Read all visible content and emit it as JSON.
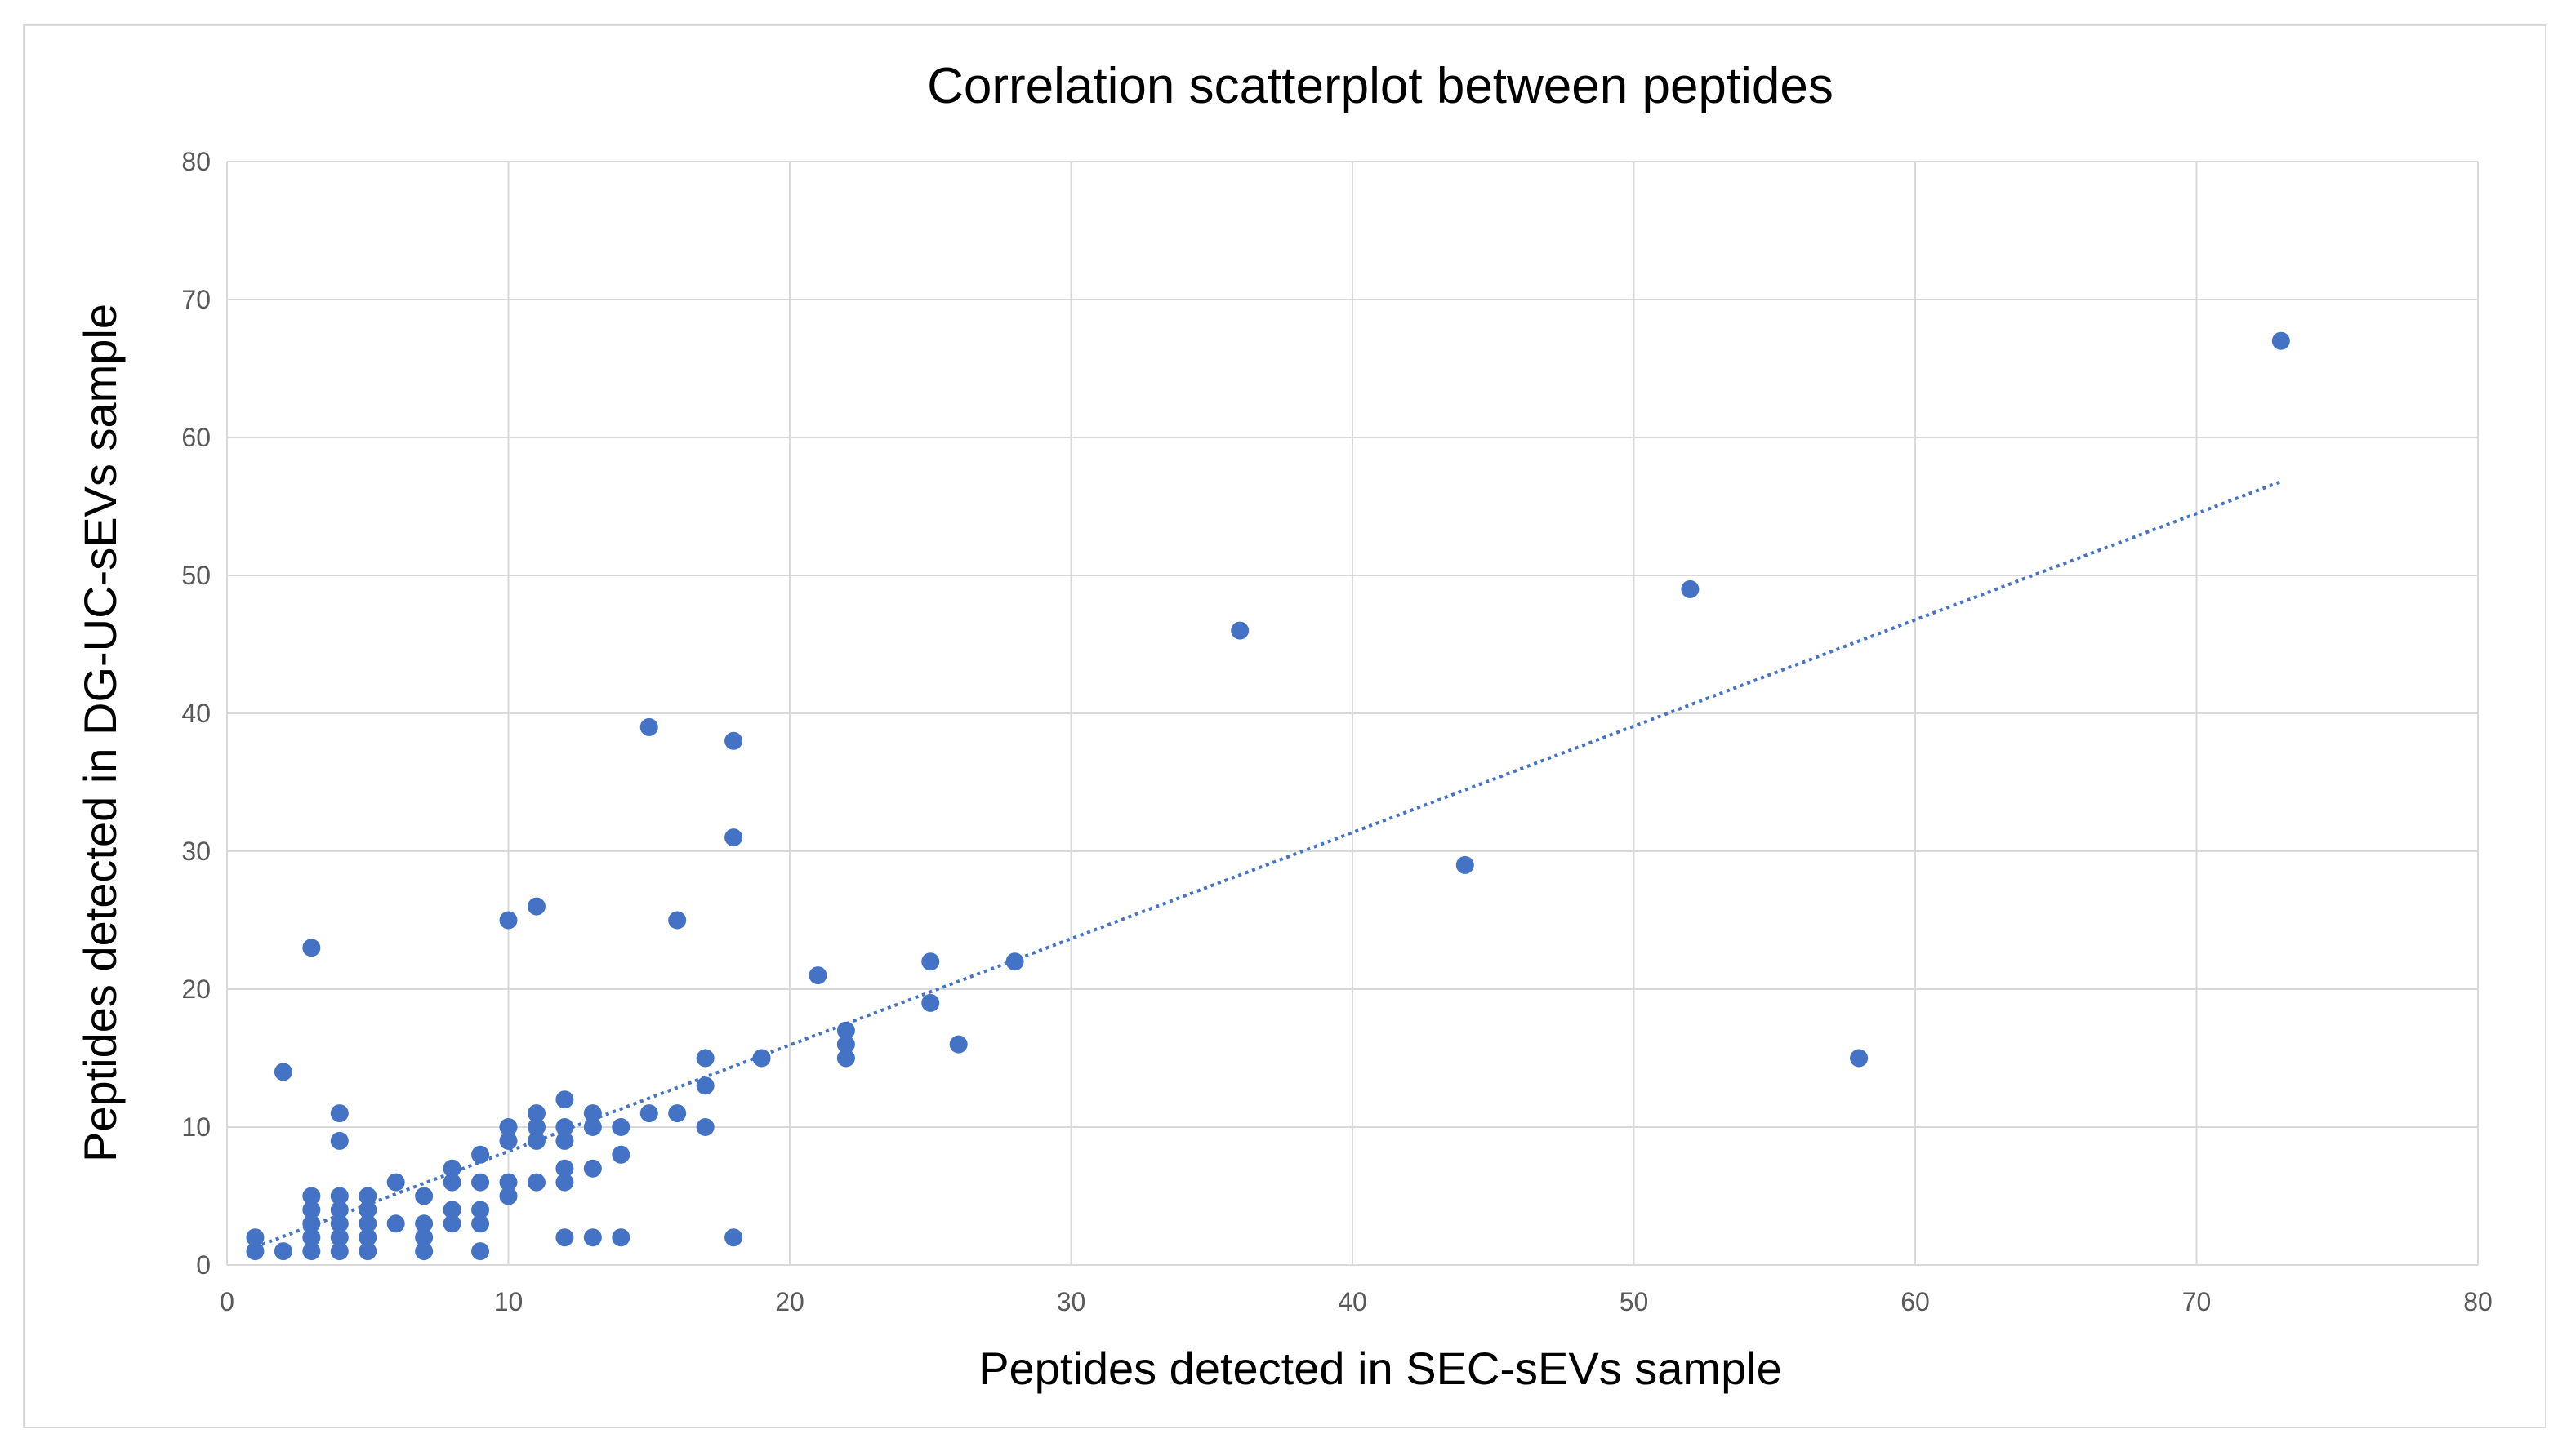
{
  "chart_data": {
    "type": "scatter",
    "title": "Correlation scatterplot between peptides",
    "xlabel": "Peptides  detected in SEC-sEVs sample",
    "ylabel": "Peptides  detected in DG-UC-sEVs sample",
    "xlim": [
      0,
      80
    ],
    "ylim": [
      0,
      80
    ],
    "xticks": [
      0,
      10,
      20,
      30,
      40,
      50,
      60,
      70,
      80
    ],
    "yticks": [
      0,
      10,
      20,
      30,
      40,
      50,
      60,
      70,
      80
    ],
    "grid": true,
    "legend": "none",
    "marker_color": "#4472C4",
    "trendline": {
      "type": "linear",
      "style": "dotted",
      "color": "#4472C4",
      "x": [
        1,
        73
      ],
      "y": [
        1.3,
        56.8
      ]
    },
    "series": [
      {
        "points": [
          [
            1,
            1
          ],
          [
            1,
            2
          ],
          [
            2,
            1
          ],
          [
            2,
            14
          ],
          [
            3,
            1
          ],
          [
            3,
            2
          ],
          [
            3,
            3
          ],
          [
            3,
            4
          ],
          [
            3,
            5
          ],
          [
            3,
            23
          ],
          [
            4,
            1
          ],
          [
            4,
            2
          ],
          [
            4,
            3
          ],
          [
            4,
            4
          ],
          [
            4,
            5
          ],
          [
            4,
            9
          ],
          [
            4,
            11
          ],
          [
            5,
            1
          ],
          [
            5,
            2
          ],
          [
            5,
            3
          ],
          [
            5,
            4
          ],
          [
            5,
            5
          ],
          [
            6,
            3
          ],
          [
            6,
            6
          ],
          [
            7,
            1
          ],
          [
            7,
            2
          ],
          [
            7,
            3
          ],
          [
            7,
            5
          ],
          [
            8,
            3
          ],
          [
            8,
            4
          ],
          [
            8,
            6
          ],
          [
            8,
            7
          ],
          [
            9,
            1
          ],
          [
            9,
            3
          ],
          [
            9,
            4
          ],
          [
            9,
            6
          ],
          [
            9,
            8
          ],
          [
            10,
            5
          ],
          [
            10,
            6
          ],
          [
            10,
            9
          ],
          [
            10,
            10
          ],
          [
            10,
            25
          ],
          [
            11,
            6
          ],
          [
            11,
            9
          ],
          [
            11,
            10
          ],
          [
            11,
            11
          ],
          [
            11,
            26
          ],
          [
            12,
            2
          ],
          [
            12,
            6
          ],
          [
            12,
            7
          ],
          [
            12,
            9
          ],
          [
            12,
            10
          ],
          [
            12,
            12
          ],
          [
            13,
            2
          ],
          [
            13,
            7
          ],
          [
            13,
            10
          ],
          [
            13,
            11
          ],
          [
            14,
            2
          ],
          [
            14,
            8
          ],
          [
            14,
            10
          ],
          [
            15,
            11
          ],
          [
            15,
            39
          ],
          [
            16,
            11
          ],
          [
            16,
            25
          ],
          [
            17,
            10
          ],
          [
            17,
            13
          ],
          [
            17,
            15
          ],
          [
            18,
            2
          ],
          [
            18,
            31
          ],
          [
            18,
            38
          ],
          [
            19,
            15
          ],
          [
            21,
            21
          ],
          [
            22,
            15
          ],
          [
            22,
            16
          ],
          [
            22,
            17
          ],
          [
            25,
            19
          ],
          [
            25,
            22
          ],
          [
            26,
            16
          ],
          [
            28,
            22
          ],
          [
            36,
            46
          ],
          [
            44,
            29
          ],
          [
            52,
            49
          ],
          [
            58,
            15
          ],
          [
            73,
            67
          ]
        ]
      }
    ]
  }
}
